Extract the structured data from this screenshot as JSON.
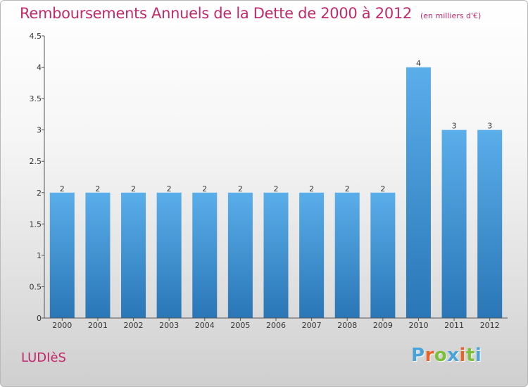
{
  "header": {
    "title": "Remboursements Annuels de la Dette de 2000 à 2012",
    "unit": "(en milliers d'€)"
  },
  "footer": {
    "commune": "LUDIèS",
    "brand": "Proxiti",
    "brand_colors": [
      "#4aa3d8",
      "#e8632a",
      "#7bbf3a",
      "#4aa3d8",
      "#e8632a",
      "#7bbf3a",
      "#4aa3d8"
    ]
  },
  "chart_data": {
    "type": "bar",
    "title": "Remboursements Annuels de la Dette de 2000 à 2012",
    "categories": [
      "2000",
      "2001",
      "2002",
      "2003",
      "2004",
      "2005",
      "2006",
      "2007",
      "2008",
      "2009",
      "2010",
      "2011",
      "2012"
    ],
    "values": [
      2,
      2,
      2,
      2,
      2,
      2,
      2,
      2,
      2,
      2,
      4,
      3,
      3
    ],
    "data_labels": [
      "2",
      "2",
      "2",
      "2",
      "2",
      "2",
      "2",
      "2",
      "2",
      "2",
      "4",
      "3",
      "3"
    ],
    "yticks": [
      0,
      0.5,
      1,
      1.5,
      2,
      2.5,
      3,
      3.5,
      4,
      4.5
    ],
    "ytick_labels": [
      "0",
      "0.5",
      "1",
      "1.5",
      "2",
      "2.5",
      "3",
      "3.5",
      "4",
      "4.5"
    ],
    "ylim": [
      0,
      4.5
    ],
    "grid": false,
    "colors": {
      "bar_top": "#5aaeea",
      "bar_bottom": "#2a76b6",
      "axis": "#555555",
      "text": "#333333"
    }
  }
}
